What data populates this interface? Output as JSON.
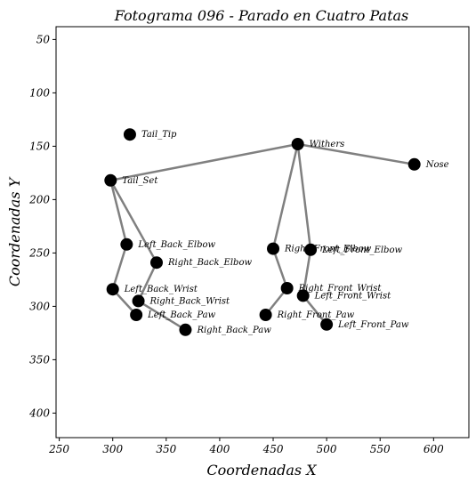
{
  "chart_data": {
    "type": "scatter",
    "title": "Fotograma 096 - Parado en Cuatro Patas",
    "xlabel": "Coordenadas X",
    "ylabel": "Coordenadas Y",
    "xlim": [
      247,
      633
    ],
    "ylim": [
      423,
      38
    ],
    "y_inverted": true,
    "xticks": [
      250,
      300,
      350,
      400,
      450,
      500,
      550,
      600
    ],
    "yticks": [
      50,
      100,
      150,
      200,
      250,
      300,
      350,
      400
    ],
    "grid": false,
    "line_color": "#808080",
    "point_color": "#000000",
    "points": [
      {
        "name": "Tail_Tip",
        "x": 316,
        "y": 139
      },
      {
        "name": "Withers",
        "x": 473,
        "y": 148
      },
      {
        "name": "Nose",
        "x": 582,
        "y": 167
      },
      {
        "name": "Tail_Set",
        "x": 298,
        "y": 182
      },
      {
        "name": "Left_Back_Elbow",
        "x": 313,
        "y": 242
      },
      {
        "name": "Right_Front_Elbow",
        "x": 450,
        "y": 246
      },
      {
        "name": "Left_Front_Elbow",
        "x": 485,
        "y": 247
      },
      {
        "name": "Right_Back_Elbow",
        "x": 341,
        "y": 259
      },
      {
        "name": "Left_Back_Wrist",
        "x": 300,
        "y": 284
      },
      {
        "name": "Right_Front_Wrist",
        "x": 463,
        "y": 283
      },
      {
        "name": "Left_Front_Wrist",
        "x": 478,
        "y": 290
      },
      {
        "name": "Right_Back_Wrist",
        "x": 324,
        "y": 295
      },
      {
        "name": "Left_Back_Paw",
        "x": 322,
        "y": 308
      },
      {
        "name": "Right_Front_Paw",
        "x": 443,
        "y": 308
      },
      {
        "name": "Left_Front_Paw",
        "x": 500,
        "y": 317
      },
      {
        "name": "Right_Back_Paw",
        "x": 368,
        "y": 322
      }
    ],
    "edges": [
      [
        "Tail_Set",
        "Withers"
      ],
      [
        "Withers",
        "Nose"
      ],
      [
        "Withers",
        "Right_Front_Elbow"
      ],
      [
        "Right_Front_Elbow",
        "Right_Front_Wrist"
      ],
      [
        "Right_Front_Wrist",
        "Right_Front_Paw"
      ],
      [
        "Withers",
        "Left_Front_Elbow"
      ],
      [
        "Left_Front_Elbow",
        "Left_Front_Wrist"
      ],
      [
        "Left_Front_Wrist",
        "Left_Front_Paw"
      ],
      [
        "Tail_Set",
        "Left_Back_Elbow"
      ],
      [
        "Left_Back_Elbow",
        "Left_Back_Wrist"
      ],
      [
        "Left_Back_Wrist",
        "Left_Back_Paw"
      ],
      [
        "Tail_Set",
        "Right_Back_Elbow"
      ],
      [
        "Right_Back_Elbow",
        "Right_Back_Wrist"
      ],
      [
        "Right_Back_Wrist",
        "Right_Back_Paw"
      ]
    ]
  }
}
